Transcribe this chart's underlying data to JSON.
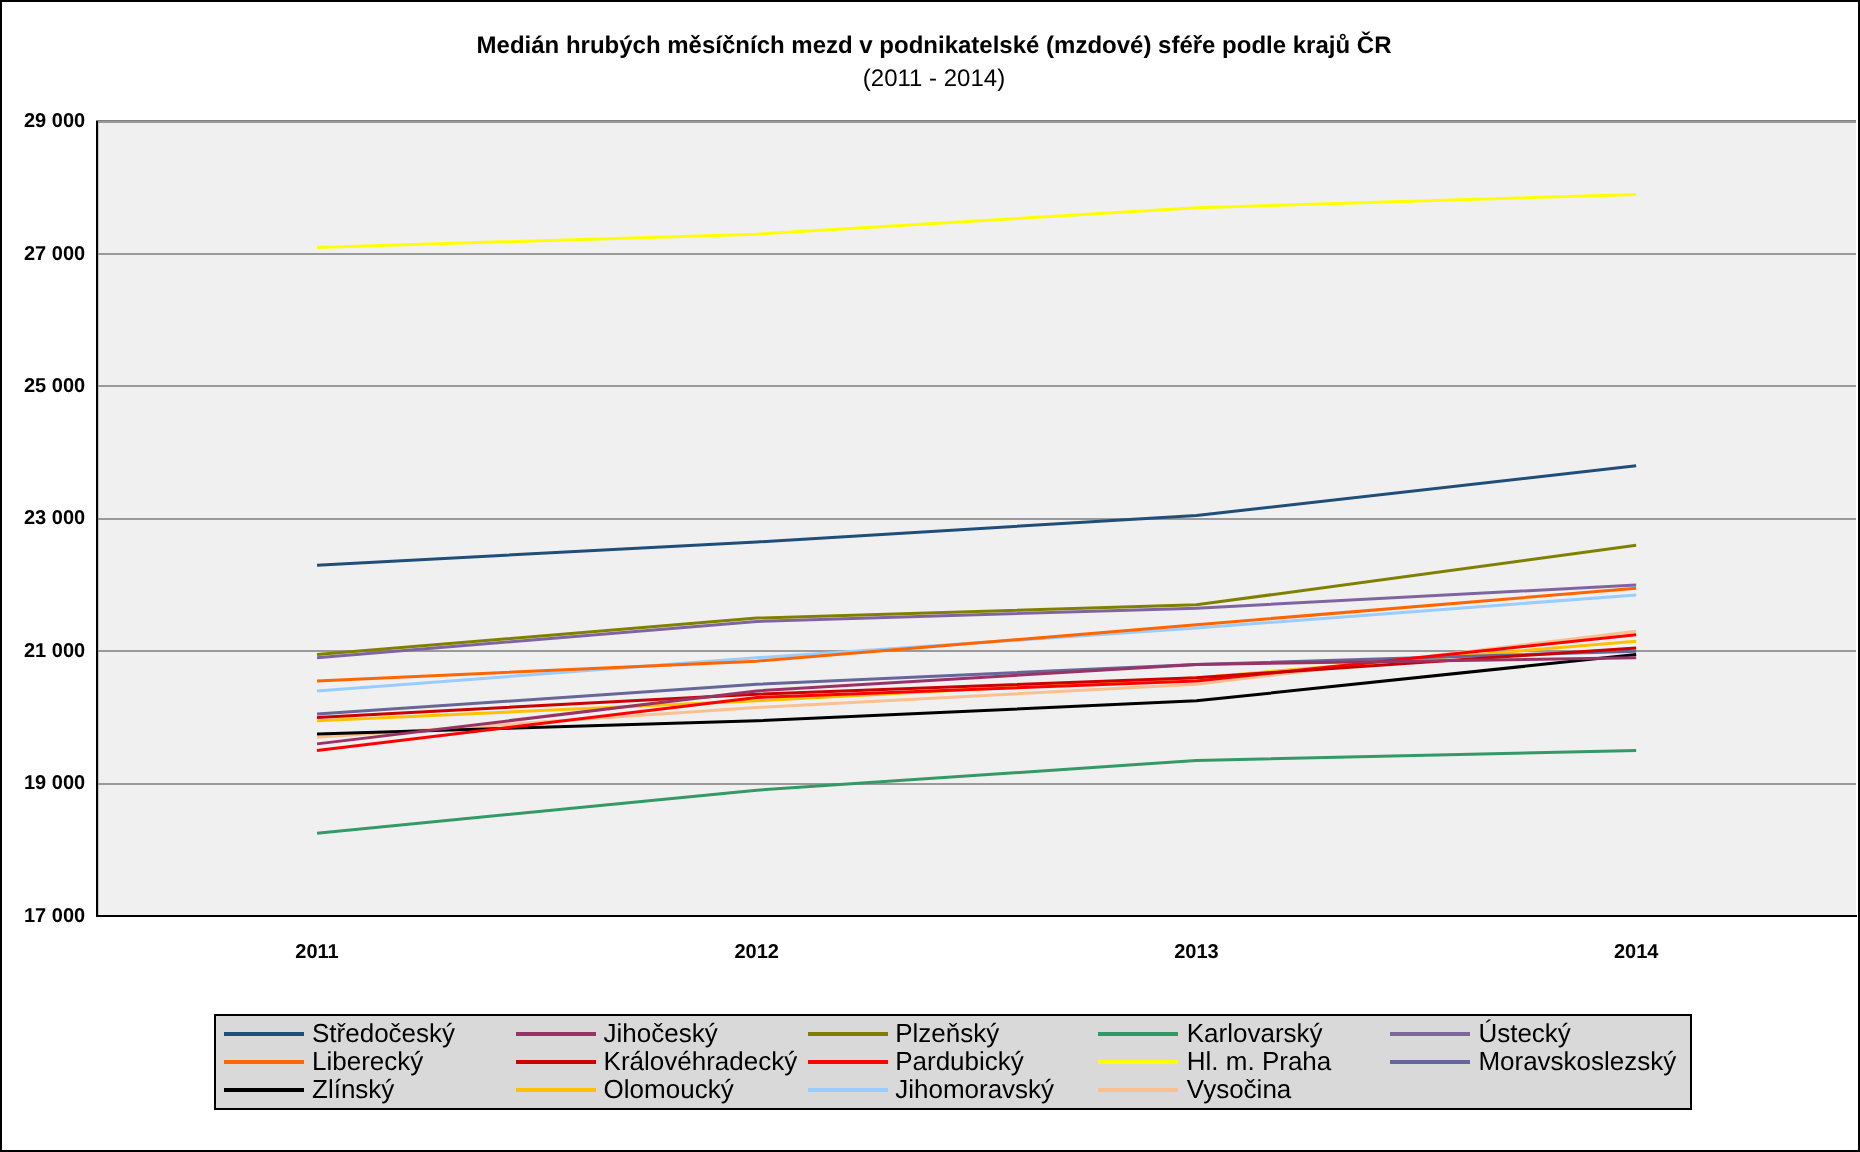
{
  "chart_data": {
    "type": "line",
    "title": "Medián hrubých měsíčních mezd v podnikatelské (mzdové) sféře podle krajů ČR",
    "subtitle": "(2011 - 2014)",
    "categories": [
      "2011",
      "2012",
      "2013",
      "2014"
    ],
    "ylim": [
      17000,
      29000
    ],
    "yticks": [
      {
        "value": 17000,
        "label": "17 000"
      },
      {
        "value": 19000,
        "label": "19 000"
      },
      {
        "value": 21000,
        "label": "21 000"
      },
      {
        "value": 23000,
        "label": "23 000"
      },
      {
        "value": 25000,
        "label": "25 000"
      },
      {
        "value": 27000,
        "label": "27 000"
      },
      {
        "value": 29000,
        "label": "29 000"
      }
    ],
    "grid": "y",
    "legend": "bottom",
    "marker": "none",
    "line_style": "solid",
    "series": [
      {
        "name": "Středočeský",
        "color": "#1f4e79",
        "values": [
          22300,
          22650,
          23050,
          23800
        ]
      },
      {
        "name": "Jihočeský",
        "color": "#993366",
        "values": [
          19600,
          20400,
          20800,
          20900
        ]
      },
      {
        "name": "Plzeňský",
        "color": "#808000",
        "values": [
          20950,
          21500,
          21700,
          22600
        ]
      },
      {
        "name": "Karlovarský",
        "color": "#339966",
        "values": [
          18250,
          18900,
          19350,
          19500
        ]
      },
      {
        "name": "Ústecký",
        "color": "#8064a2",
        "values": [
          20900,
          21450,
          21650,
          22000
        ]
      },
      {
        "name": "Liberecký",
        "color": "#ff6600",
        "values": [
          20550,
          20850,
          21400,
          21950
        ]
      },
      {
        "name": "Královéhradecký",
        "color": "#cc0000",
        "values": [
          20000,
          20350,
          20600,
          21050
        ]
      },
      {
        "name": "Pardubický",
        "color": "#ff0000",
        "values": [
          19500,
          20300,
          20550,
          21250
        ]
      },
      {
        "name": "Hl. m. Praha",
        "color": "#ffff00",
        "values": [
          27100,
          27300,
          27700,
          27900
        ]
      },
      {
        "name": "Moravskoslezský",
        "color": "#666699",
        "values": [
          20050,
          20500,
          20800,
          21000
        ]
      },
      {
        "name": "Zlínský",
        "color": "#000000",
        "values": [
          19750,
          19950,
          20250,
          20950
        ]
      },
      {
        "name": "Olomoucký",
        "color": "#ffc000",
        "values": [
          19950,
          20250,
          20600,
          21150
        ]
      },
      {
        "name": "Jihomoravský",
        "color": "#99ccff",
        "values": [
          20400,
          20900,
          21350,
          21850
        ]
      },
      {
        "name": "Vysočina",
        "color": "#fac090",
        "values": [
          19700,
          20150,
          20500,
          21300
        ]
      }
    ]
  }
}
